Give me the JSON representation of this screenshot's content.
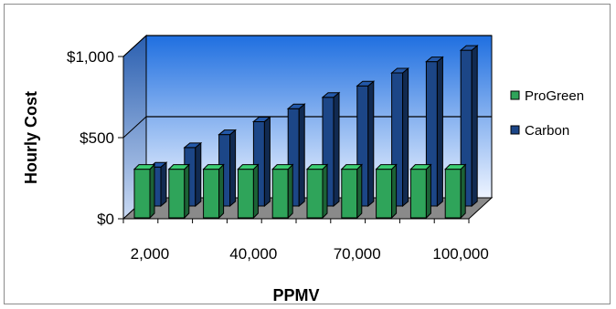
{
  "chart_data": {
    "type": "bar",
    "title": "",
    "xlabel": "PPMV",
    "ylabel": "Hourly Cost",
    "x_tick_labels": [
      "2,000",
      "40,000",
      "70,000",
      "100,000"
    ],
    "y_tick_labels": [
      "$0",
      "$500",
      "$1,000"
    ],
    "ylim": [
      0,
      1000
    ],
    "categories": [
      "2,000",
      "",
      "",
      "40,000",
      "",
      "",
      "70,000",
      "",
      "",
      "100,000"
    ],
    "series": [
      {
        "name": "ProGreen",
        "values": [
          300,
          300,
          300,
          300,
          300,
          300,
          300,
          300,
          300,
          300
        ]
      },
      {
        "name": "Carbon",
        "values": [
          240,
          360,
          440,
          520,
          600,
          670,
          740,
          820,
          890,
          960
        ]
      }
    ],
    "legend_position": "right",
    "gridlines": [
      500,
      1000
    ],
    "colors": {
      "ProGreen": "#2fa45a",
      "Carbon": "#1c4687",
      "wall_top": "#1f6fe0",
      "wall_bottom": "#eef4ff",
      "floor": "#8a8a8a"
    }
  }
}
